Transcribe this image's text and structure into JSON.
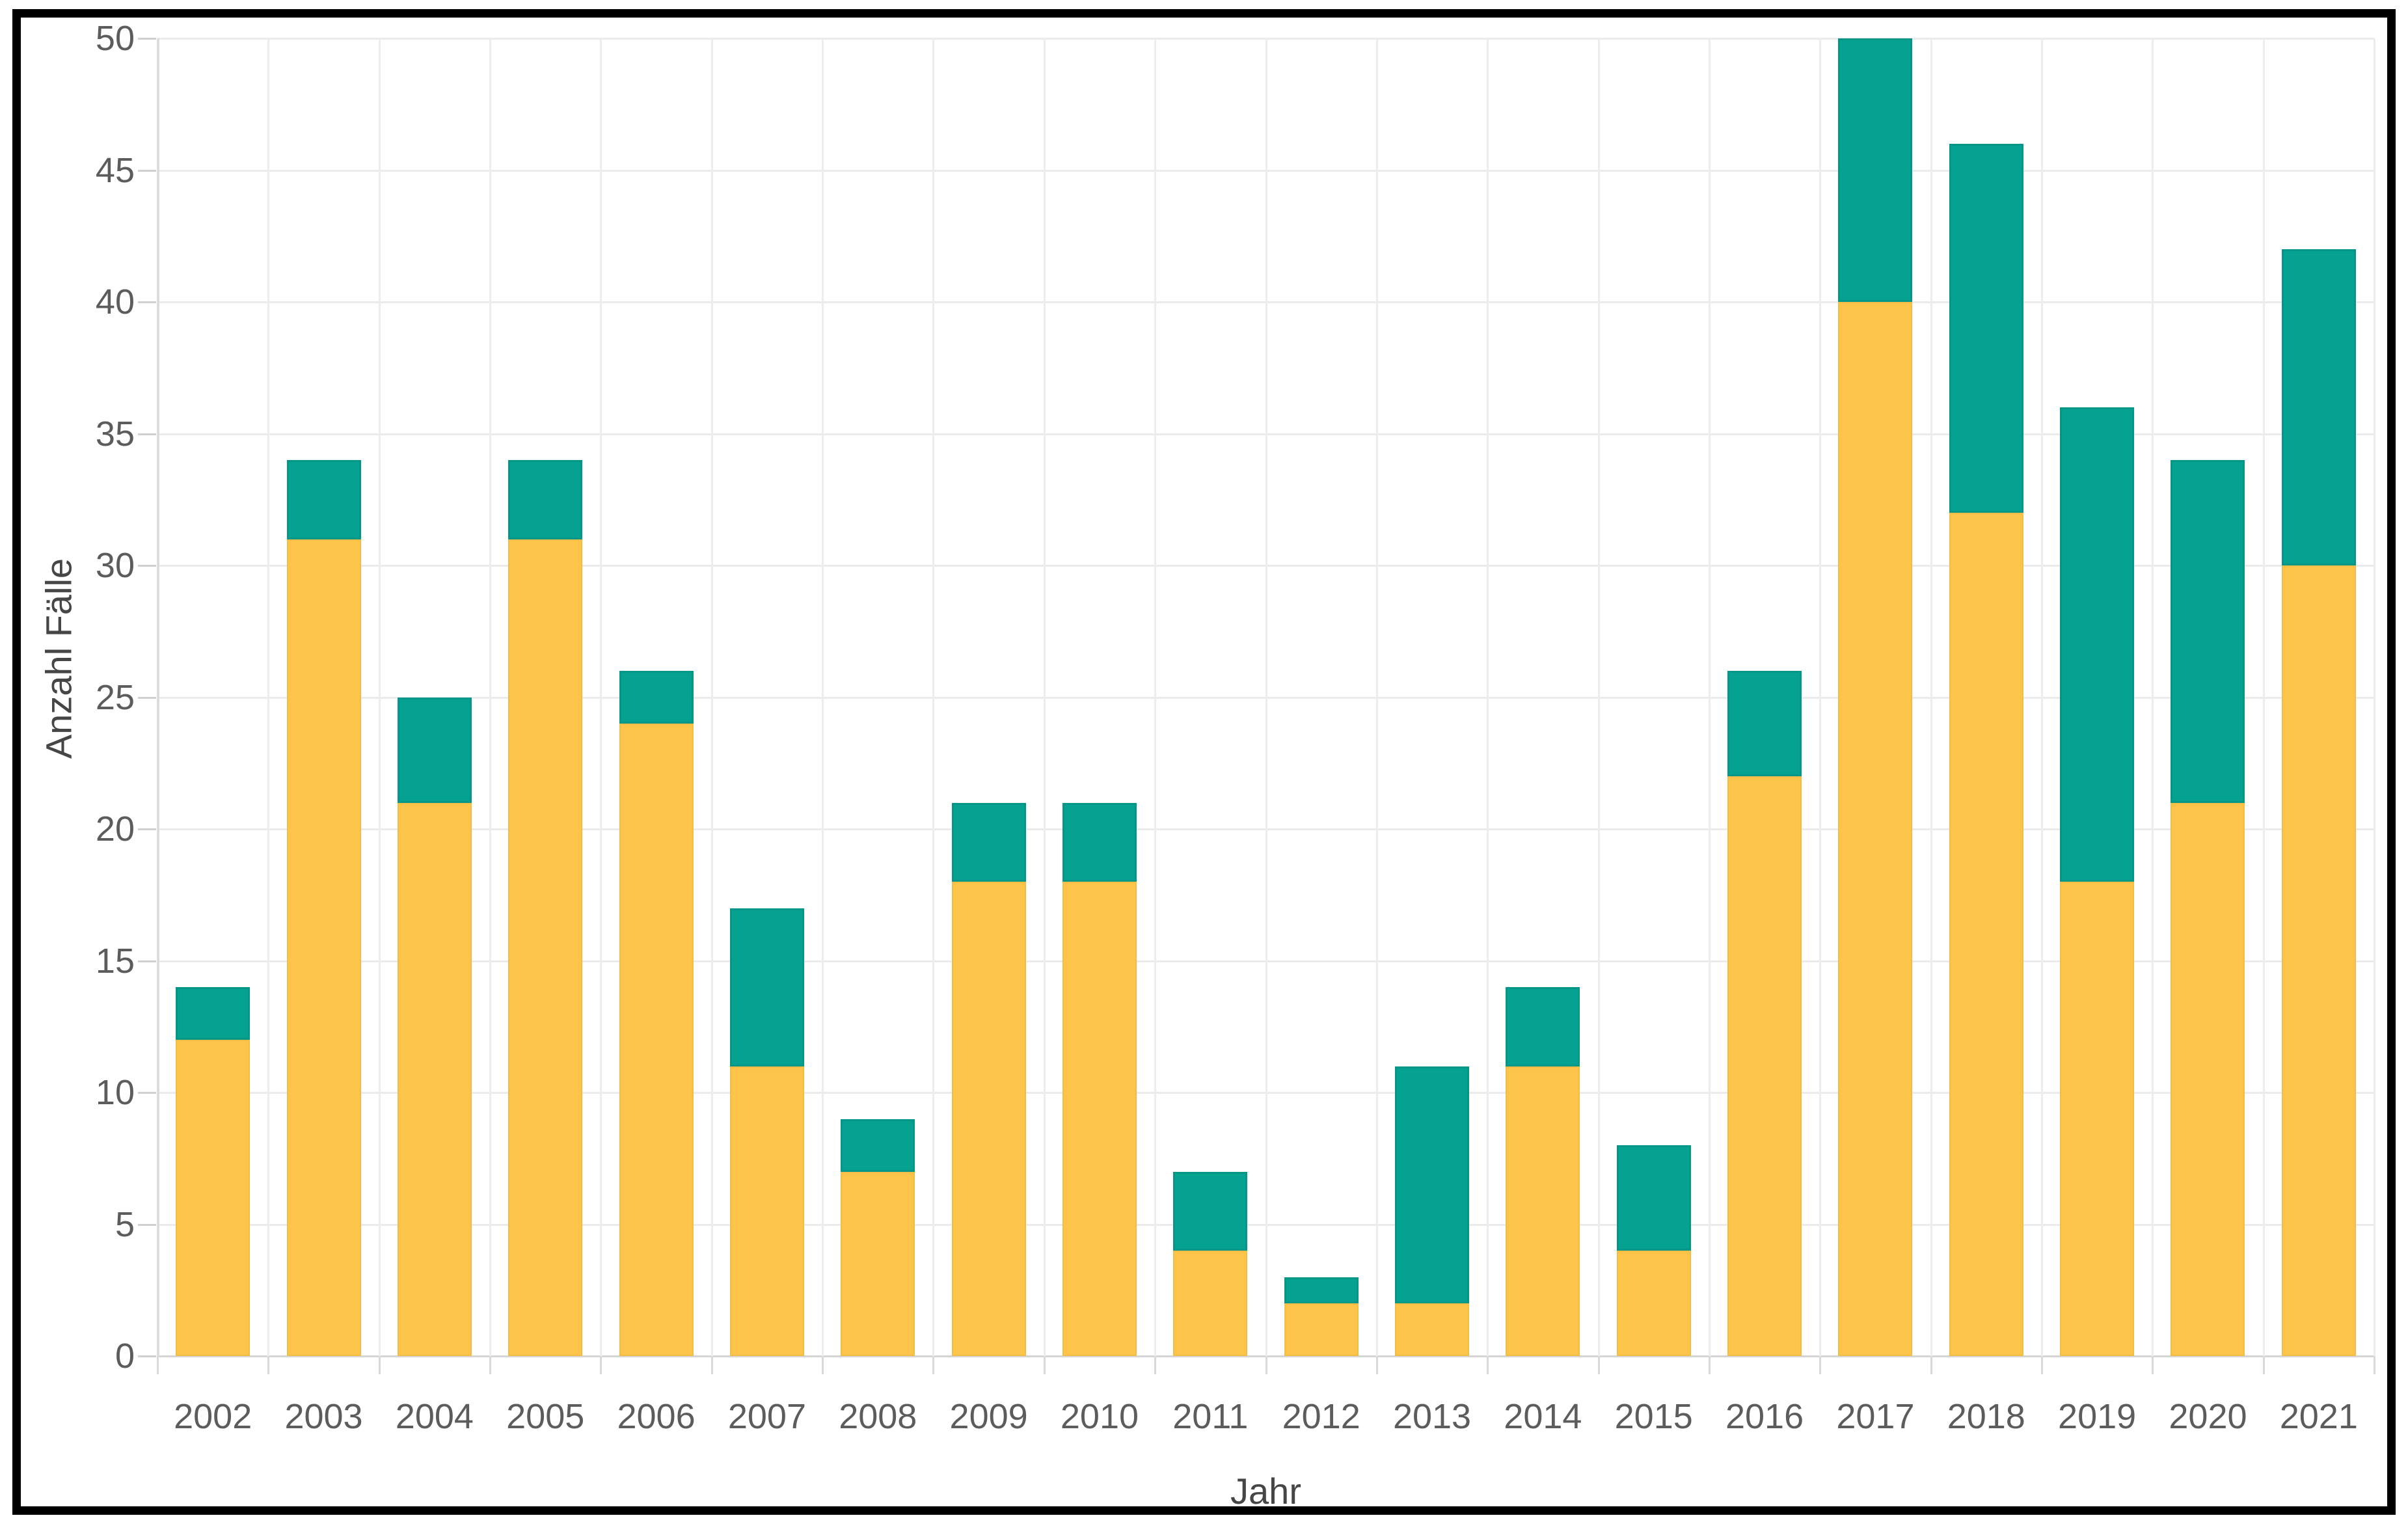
{
  "frame": {
    "border_color": "#000000",
    "background": "#ffffff"
  },
  "chart_data": {
    "type": "bar",
    "stacked": true,
    "title": "",
    "xlabel": "Jahr",
    "ylabel": "Anzahl Fälle",
    "categories": [
      "2002",
      "2003",
      "2004",
      "2005",
      "2006",
      "2007",
      "2008",
      "2009",
      "2010",
      "2011",
      "2012",
      "2013",
      "2014",
      "2015",
      "2016",
      "2017",
      "2018",
      "2019",
      "2020",
      "2021"
    ],
    "series": [
      {
        "name": "yellow",
        "color": "#fcc54a",
        "values": [
          12,
          31,
          21,
          31,
          24,
          11,
          7,
          18,
          18,
          4,
          2,
          2,
          11,
          4,
          22,
          40,
          32,
          18,
          21,
          30
        ]
      },
      {
        "name": "teal",
        "color": "#05a292",
        "values": [
          2,
          3,
          4,
          3,
          2,
          6,
          2,
          3,
          3,
          3,
          1,
          9,
          3,
          4,
          4,
          10,
          14,
          18,
          13,
          12
        ]
      }
    ],
    "ylim": [
      0,
      50
    ],
    "yticks": [
      0,
      5,
      10,
      15,
      20,
      25,
      30,
      35,
      40,
      45,
      50
    ],
    "grid": true,
    "legend_position": "none"
  },
  "colors": {
    "gridline": "#ebebeb",
    "gridline_zero": "#d5d5d5",
    "tick_label": "#5c5c5c",
    "axis_title": "#464646"
  }
}
